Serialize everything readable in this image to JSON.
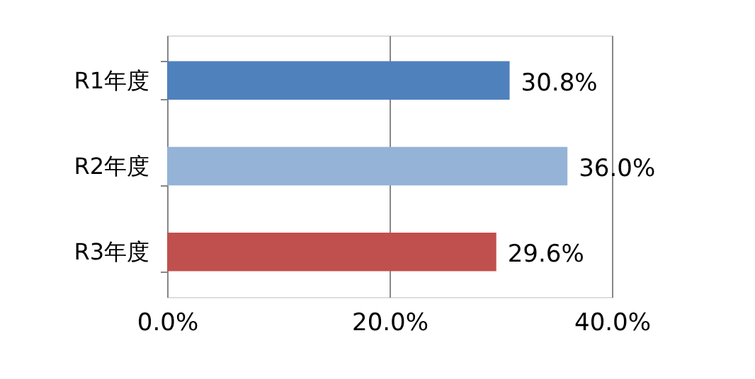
{
  "chart_data": {
    "type": "bar",
    "orientation": "horizontal",
    "categories": [
      "R1年度",
      "R2年度",
      "R3年度"
    ],
    "values": [
      30.8,
      36.0,
      29.6
    ],
    "colors": [
      "#4f81bd",
      "#95b3d7",
      "#c0504d"
    ],
    "value_labels": [
      "30.8%",
      "36.0%",
      "29.6%"
    ],
    "xlim": [
      0,
      40
    ],
    "xticks": [
      {
        "value": 0,
        "label": "0.0%"
      },
      {
        "value": 20,
        "label": "20.0%"
      },
      {
        "value": 40,
        "label": "40.0%"
      }
    ],
    "grid": "x"
  }
}
